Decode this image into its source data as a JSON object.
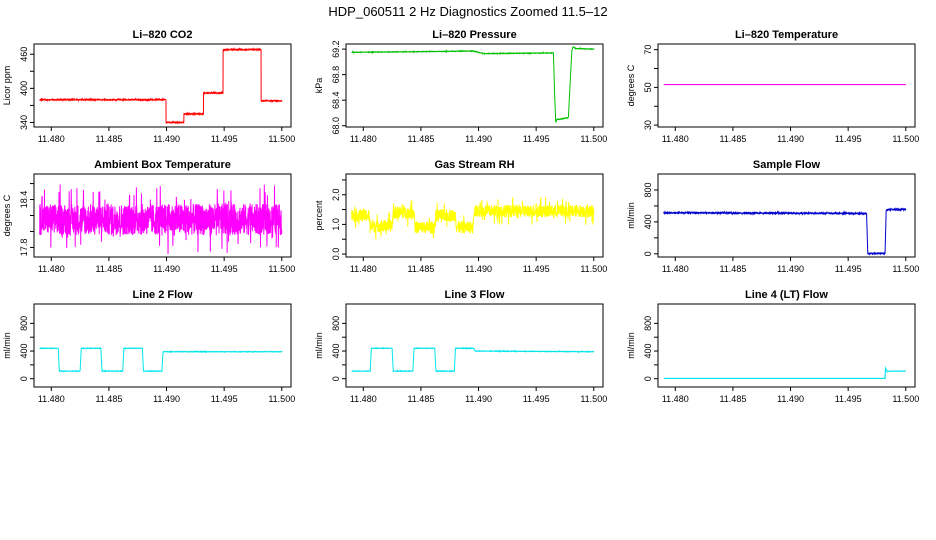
{
  "main_title": "HDP_060511  2 Hz Diagnostics Zoomed 11.5–12",
  "chart_data": [
    {
      "type": "line",
      "title": "Li–820 CO2",
      "ylabel": "Licor ppm",
      "xlim": [
        11.4785,
        11.5008
      ],
      "ylim": [
        332,
        478
      ],
      "xticks": [
        "11.480",
        "11.485",
        "11.490",
        "11.495",
        "11.500"
      ],
      "xtick_values": [
        11.48,
        11.485,
        11.49,
        11.495,
        11.5
      ],
      "yticks": [
        "340",
        "370",
        "400",
        "430",
        "460"
      ],
      "ytick_values": [
        340,
        370,
        400,
        430,
        460
      ],
      "labeled_yticks": [
        "340",
        "400",
        "460"
      ],
      "color": "#ff0000",
      "noise": 1.2,
      "x": [
        11.479,
        11.48995,
        11.48996,
        11.4915,
        11.49151,
        11.4932,
        11.49321,
        11.4949,
        11.49491,
        11.4982,
        11.49821,
        11.5
      ],
      "y": [
        380,
        380,
        340,
        340,
        355,
        355,
        392,
        392,
        468,
        468,
        378,
        378
      ]
    },
    {
      "type": "line",
      "title": "Li–820 Pressure",
      "ylabel": "kPa",
      "xlim": [
        11.4785,
        11.5008
      ],
      "ylim": [
        67.98,
        69.28
      ],
      "xticks": [
        "11.480",
        "11.485",
        "11.490",
        "11.495",
        "11.500"
      ],
      "xtick_values": [
        11.48,
        11.485,
        11.49,
        11.495,
        11.5
      ],
      "yticks": [
        "68.0",
        "68.4",
        "68.8",
        "69.2"
      ],
      "ytick_values": [
        68.0,
        68.4,
        68.8,
        69.2
      ],
      "labeled_yticks": [
        "68.0",
        "68.4",
        "68.8",
        "69.2"
      ],
      "color": "#00c000",
      "noise": 0.005,
      "x": [
        11.479,
        11.485,
        11.4895,
        11.4905,
        11.4965,
        11.4966,
        11.4967,
        11.4968,
        11.497,
        11.4978,
        11.4979,
        11.4981,
        11.4982,
        11.4984,
        11.5
      ],
      "y": [
        69.15,
        69.16,
        69.17,
        69.13,
        69.14,
        68.5,
        68.05,
        68.1,
        68.1,
        68.13,
        68.5,
        69.18,
        69.24,
        69.21,
        69.2
      ]
    },
    {
      "type": "line",
      "title": "Li–820 Temperature",
      "ylabel": "degrees C",
      "xlim": [
        11.4785,
        11.5008
      ],
      "ylim": [
        29,
        73
      ],
      "xticks": [
        "11.480",
        "11.485",
        "11.490",
        "11.495",
        "11.500"
      ],
      "xtick_values": [
        11.48,
        11.485,
        11.49,
        11.495,
        11.5
      ],
      "yticks": [
        "30",
        "40",
        "50",
        "60",
        "70"
      ],
      "ytick_values": [
        30,
        40,
        50,
        60,
        70
      ],
      "labeled_yticks": [
        "30",
        "50",
        "70"
      ],
      "color": "#ff00ff",
      "noise": 0,
      "x": [
        11.479,
        11.5
      ],
      "y": [
        51.5,
        51.5
      ]
    },
    {
      "type": "line",
      "title": "Ambient Box Temperature",
      "ylabel": "degrees C",
      "xlim": [
        11.4785,
        11.5008
      ],
      "ylim": [
        17.68,
        18.72
      ],
      "xticks": [
        "11.480",
        "11.485",
        "11.490",
        "11.495",
        "11.500"
      ],
      "xtick_values": [
        11.48,
        11.485,
        11.49,
        11.495,
        11.5
      ],
      "yticks": [
        "17.8",
        "18.0",
        "18.2",
        "18.4",
        "18.6"
      ],
      "ytick_values": [
        17.8,
        18.0,
        18.2,
        18.4,
        18.6
      ],
      "labeled_yticks": [
        "17.8",
        "18.4"
      ],
      "color": "#ff00ff",
      "noise": 0.28,
      "x": [
        11.479,
        11.5
      ],
      "y": [
        18.15,
        18.15
      ]
    },
    {
      "type": "line",
      "title": "Gas Stream RH",
      "ylabel": "percent",
      "xlim": [
        11.4785,
        11.5008
      ],
      "ylim": [
        -0.1,
        2.7
      ],
      "xticks": [
        "11.480",
        "11.485",
        "11.490",
        "11.495",
        "11.500"
      ],
      "xtick_values": [
        11.48,
        11.485,
        11.49,
        11.495,
        11.5
      ],
      "yticks": [
        "0.0",
        "0.5",
        "1.0",
        "1.5",
        "2.0",
        "2.5"
      ],
      "ytick_values": [
        0,
        0.5,
        1.0,
        1.5,
        2.0,
        2.5
      ],
      "labeled_yticks": [
        "0.0",
        "1.0",
        "2.0"
      ],
      "color": "#ffff00",
      "noise": 0.3,
      "x": [
        11.479,
        11.4805,
        11.4806,
        11.4825,
        11.4826,
        11.4844,
        11.4845,
        11.4862,
        11.4863,
        11.488,
        11.4881,
        11.4895,
        11.4896,
        11.5
      ],
      "y": [
        1.3,
        1.3,
        0.95,
        0.95,
        1.4,
        1.4,
        0.9,
        0.9,
        1.3,
        1.3,
        0.9,
        0.9,
        1.45,
        1.45
      ]
    },
    {
      "type": "line",
      "title": "Sample Flow",
      "ylabel": "ml/min",
      "xlim": [
        11.4785,
        11.5008
      ],
      "ylim": [
        -40,
        1000
      ],
      "xticks": [
        "11.480",
        "11.485",
        "11.490",
        "11.495",
        "11.500"
      ],
      "xtick_values": [
        11.48,
        11.485,
        11.49,
        11.495,
        11.5
      ],
      "yticks": [
        "0",
        "200",
        "400",
        "600",
        "800"
      ],
      "ytick_values": [
        0,
        200,
        400,
        600,
        800
      ],
      "labeled_yticks": [
        "0",
        "400",
        "800"
      ],
      "color": "#0000cc",
      "noise": 10,
      "x": [
        11.479,
        11.4966,
        11.4967,
        11.4982,
        11.4983,
        11.4985,
        11.5
      ],
      "y": [
        515,
        505,
        5,
        5,
        545,
        555,
        555
      ]
    },
    {
      "type": "line",
      "title": "Line 2 Flow",
      "ylabel": "ml/min",
      "xlim": [
        11.4785,
        11.5008
      ],
      "ylim": [
        -120,
        1080
      ],
      "xticks": [
        "11.480",
        "11.485",
        "11.490",
        "11.495",
        "11.500"
      ],
      "xtick_values": [
        11.48,
        11.485,
        11.49,
        11.495,
        11.5
      ],
      "yticks": [
        "0",
        "200",
        "400",
        "600",
        "800"
      ],
      "ytick_values": [
        0,
        200,
        400,
        600,
        800
      ],
      "labeled_yticks": [
        "0",
        "400",
        "800"
      ],
      "color": "#00e5ee",
      "noise": 4,
      "x": [
        11.479,
        11.4806,
        11.4807,
        11.4825,
        11.4826,
        11.4843,
        11.4844,
        11.4862,
        11.4863,
        11.4879,
        11.488,
        11.4896,
        11.4897,
        11.5
      ],
      "y": [
        440,
        440,
        110,
        110,
        440,
        440,
        110,
        110,
        440,
        440,
        110,
        110,
        390,
        390
      ]
    },
    {
      "type": "line",
      "title": "Line 3 Flow",
      "ylabel": "ml/min",
      "xlim": [
        11.4785,
        11.5008
      ],
      "ylim": [
        -120,
        1080
      ],
      "xticks": [
        "11.480",
        "11.485",
        "11.490",
        "11.495",
        "11.500"
      ],
      "xtick_values": [
        11.48,
        11.485,
        11.49,
        11.495,
        11.5
      ],
      "yticks": [
        "0",
        "200",
        "400",
        "600",
        "800"
      ],
      "ytick_values": [
        0,
        200,
        400,
        600,
        800
      ],
      "labeled_yticks": [
        "0",
        "400",
        "800"
      ],
      "color": "#00e5ee",
      "noise": 4,
      "x": [
        11.479,
        11.4806,
        11.4807,
        11.4825,
        11.4826,
        11.4843,
        11.4844,
        11.4862,
        11.4863,
        11.4879,
        11.488,
        11.4896,
        11.4897,
        11.5
      ],
      "y": [
        110,
        110,
        440,
        440,
        110,
        110,
        440,
        440,
        110,
        110,
        440,
        440,
        400,
        390
      ]
    },
    {
      "type": "line",
      "title": "Line 4 (LT) Flow",
      "ylabel": "ml/min",
      "xlim": [
        11.4785,
        11.5008
      ],
      "ylim": [
        -120,
        1080
      ],
      "xticks": [
        "11.480",
        "11.485",
        "11.490",
        "11.495",
        "11.500"
      ],
      "xtick_values": [
        11.48,
        11.485,
        11.49,
        11.495,
        11.5
      ],
      "yticks": [
        "0",
        "200",
        "400",
        "600",
        "800"
      ],
      "ytick_values": [
        0,
        200,
        400,
        600,
        800
      ],
      "labeled_yticks": [
        "0",
        "400",
        "800"
      ],
      "color": "#00e5ee",
      "noise": 0,
      "x": [
        11.479,
        11.4982,
        11.49825,
        11.4984,
        11.4986,
        11.5
      ],
      "y": [
        5,
        5,
        150,
        100,
        110,
        110
      ]
    }
  ]
}
